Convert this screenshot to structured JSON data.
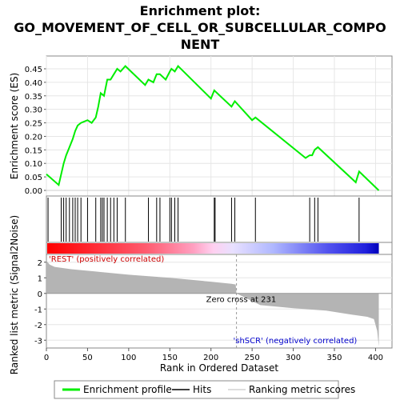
{
  "title_lines": [
    "Enrichment plot:",
    "GO_MOVEMENT_OF_CELL_OR_SUBCELLULAR_COMPO",
    "NENT"
  ],
  "chart_data": {
    "type": "line",
    "x_label": "Rank in Ordered Dataset",
    "es_panel": {
      "ylabel": "Enrichment score (ES)",
      "ylim": [
        0,
        0.45
      ],
      "yticks": [
        "0.00",
        "0.05",
        "0.10",
        "0.15",
        "0.20",
        "0.25",
        "0.30",
        "0.35",
        "0.40",
        "0.45"
      ],
      "series_name": "Enrichment profile",
      "color": "#00ee00",
      "x": [
        0,
        15,
        18,
        21,
        24,
        28,
        32,
        35,
        38,
        42,
        50,
        55,
        60,
        63,
        66,
        70,
        74,
        78,
        82,
        86,
        90,
        96,
        120,
        124,
        130,
        134,
        138,
        145,
        150,
        152,
        156,
        160,
        200,
        204,
        225,
        229,
        250,
        254,
        315,
        320,
        323,
        326,
        330,
        376,
        380,
        404
      ],
      "y": [
        0.06,
        0.02,
        0.06,
        0.1,
        0.13,
        0.16,
        0.19,
        0.22,
        0.24,
        0.25,
        0.26,
        0.25,
        0.27,
        0.31,
        0.36,
        0.35,
        0.41,
        0.41,
        0.43,
        0.45,
        0.44,
        0.46,
        0.39,
        0.41,
        0.4,
        0.43,
        0.43,
        0.41,
        0.44,
        0.45,
        0.44,
        0.46,
        0.34,
        0.37,
        0.31,
        0.33,
        0.26,
        0.27,
        0.12,
        0.13,
        0.13,
        0.15,
        0.16,
        0.03,
        0.07,
        0.0
      ]
    },
    "hits": [
      2,
      18,
      21,
      24,
      28,
      32,
      35,
      38,
      42,
      50,
      60,
      66,
      68,
      70,
      74,
      78,
      82,
      86,
      96,
      124,
      134,
      138,
      150,
      152,
      156,
      160,
      204,
      205,
      225,
      229,
      254,
      320,
      326,
      330,
      380
    ],
    "rank_panel": {
      "ylabel": "Ranked list metric (Signal2Noise)",
      "ylim": [
        -3.5,
        2.5
      ],
      "yticks": [
        "-3",
        "-2",
        "-1",
        "0",
        "1",
        "2"
      ],
      "x": [
        0,
        4,
        10,
        30,
        60,
        100,
        150,
        200,
        225,
        230,
        231,
        260,
        300,
        340,
        370,
        390,
        398,
        402,
        404
      ],
      "values": [
        2.1,
        1.85,
        1.7,
        1.55,
        1.4,
        1.2,
        1.0,
        0.75,
        0.62,
        0.57,
        0,
        -0.75,
        -0.95,
        -1.1,
        -1.35,
        -1.5,
        -1.65,
        -2.4,
        -3.4
      ],
      "zero_cross_label": "Zero cross at 231",
      "pos_label": "'REST' (positively correlated)",
      "neg_label": "'shSCR' (negatively correlated)"
    },
    "xlim": [
      0,
      420
    ],
    "xticks": [
      "0",
      "50",
      "100",
      "150",
      "200",
      "250",
      "300",
      "350",
      "400"
    ],
    "legend": [
      {
        "label": "Enrichment profile",
        "color": "#00ee00"
      },
      {
        "label": "Hits",
        "color": "#000000"
      },
      {
        "label": "Ranking metric scores",
        "color": "#bbbbbb"
      }
    ]
  }
}
